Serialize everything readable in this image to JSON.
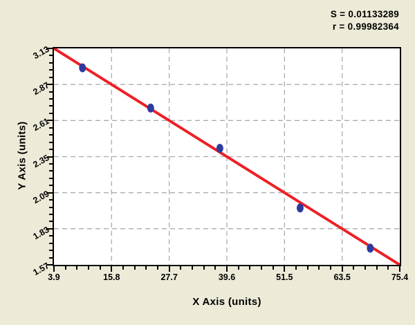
{
  "stats": {
    "s_line": "S = 0.01133289",
    "r_line": "r = 0.99982364"
  },
  "chart_data": {
    "type": "scatter",
    "title": "",
    "xlabel": "X Axis (units)",
    "ylabel": "Y Axis (units)",
    "xlim": [
      3.9,
      75.4
    ],
    "ylim": [
      1.57,
      3.13
    ],
    "x_tick_labels": [
      "3.9",
      "15.8",
      "27.7",
      "39.6",
      "51.5",
      "63.5",
      "75.4"
    ],
    "y_tick_labels": [
      "3.13",
      "2.87",
      "2.61",
      "2.35",
      "2.09",
      "1.83",
      "1.57"
    ],
    "minor_ticks_per_major": 5,
    "grid": "dashed",
    "legend": "none",
    "annotations": [
      "S = 0.01133289",
      "r = 0.99982364"
    ],
    "points": [
      {
        "x": 9.8,
        "y": 2.99
      },
      {
        "x": 23.9,
        "y": 2.7
      },
      {
        "x": 38.2,
        "y": 2.41
      },
      {
        "x": 54.8,
        "y": 1.98
      },
      {
        "x": 69.3,
        "y": 1.69
      }
    ],
    "fit_line": {
      "x1": 3.9,
      "y1": 3.13,
      "x2": 75.4,
      "y2": 1.57
    },
    "colors": {
      "background": "#EDEBD8",
      "plot_background": "#FFFFFF",
      "fit_line": "#EC2026",
      "marker": "#2E3A9E",
      "gridline": "#ABABAB",
      "axis": "#000000",
      "text": "#000000"
    }
  }
}
